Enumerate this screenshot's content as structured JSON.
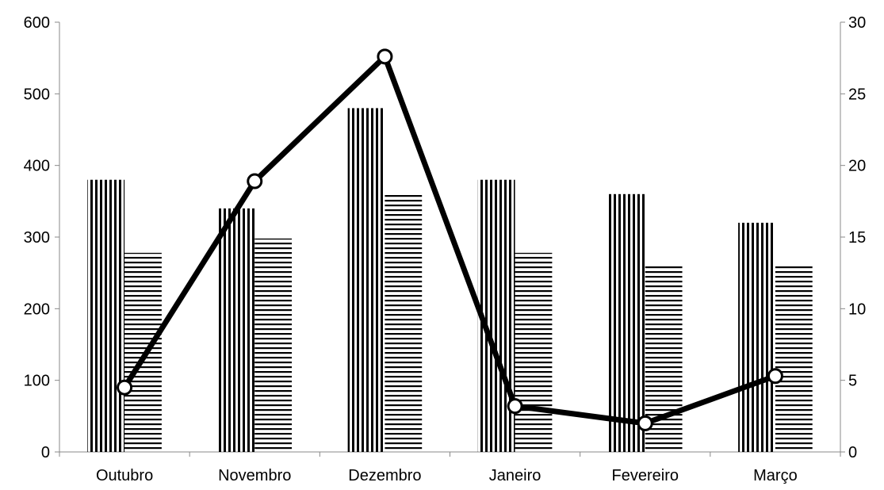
{
  "chart_data": {
    "type": "bar",
    "combo": "bar+line",
    "categories": [
      "Outubro",
      "Novembro",
      "Dezembro",
      "Janeiro",
      "Fevereiro",
      "Março"
    ],
    "series": [
      {
        "values": [
          380,
          340,
          480,
          380,
          360,
          320
        ],
        "axis": "left",
        "kind": "bar",
        "pattern": "vertical-stripes"
      },
      {
        "values": [
          278,
          298,
          360,
          278,
          260,
          260
        ],
        "axis": "left",
        "kind": "bar",
        "pattern": "horizontal-stripes"
      },
      {
        "values": [
          4.5,
          18.9,
          27.6,
          3.2,
          2.0,
          5.3
        ],
        "axis": "right",
        "kind": "line"
      }
    ],
    "ylim_left": [
      0,
      600
    ],
    "yticks_left": [
      "0",
      "100",
      "200",
      "300",
      "400",
      "500",
      "600"
    ],
    "ylim_right": [
      0,
      30
    ],
    "yticks_right": [
      "0",
      "5",
      "10",
      "15",
      "20",
      "25",
      "30"
    ],
    "title": "",
    "xlabel": "",
    "ylabel": "",
    "grid": false,
    "legend": "none",
    "colors": {
      "bar": "#000000",
      "line": "#000000",
      "marker_fill": "#ffffff",
      "background": "#ffffff"
    }
  }
}
